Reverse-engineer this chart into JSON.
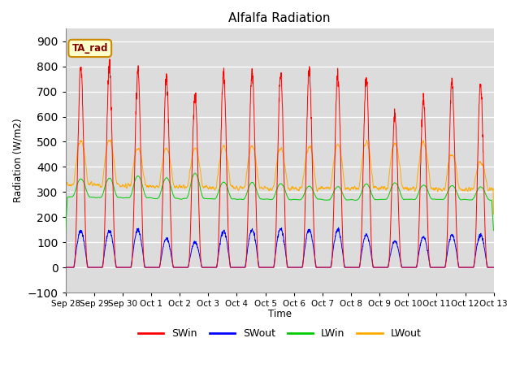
{
  "title": "Alfalfa Radiation",
  "ylabel": "Radiation (W/m2)",
  "xlabel": "Time",
  "ylim": [
    -100,
    950
  ],
  "bg_color": "#dcdcdc",
  "fig_color": "#ffffff",
  "annotation_text": "TA_rad",
  "annotation_bg": "#ffffcc",
  "annotation_border": "#cc8800",
  "tick_labels": [
    "Sep 28",
    "Sep 29",
    "Sep 30",
    "Oct 1",
    "Oct 2",
    "Oct 3",
    "Oct 4",
    "Oct 5",
    "Oct 6",
    "Oct 7",
    "Oct 8",
    "Oct 9",
    "Oct 10",
    "Oct 11",
    "Oct 12",
    "Oct 13"
  ],
  "legend_labels": [
    "SWin",
    "SWout",
    "LWin",
    "LWout"
  ],
  "legend_colors": [
    "#ff0000",
    "#0000ff",
    "#00cc00",
    "#ffaa00"
  ],
  "num_days": 15,
  "hours_per_day": 24,
  "SWin_peaks": [
    800,
    805,
    790,
    755,
    685,
    775,
    785,
    780,
    785,
    770,
    760,
    605,
    670,
    735,
    725
  ],
  "SWout_peaks": [
    145,
    145,
    150,
    115,
    100,
    145,
    150,
    155,
    150,
    150,
    130,
    105,
    120,
    130,
    130
  ],
  "LWin_night": [
    280,
    278,
    277,
    275,
    273,
    272,
    271,
    270,
    270,
    269,
    270,
    272,
    271,
    270,
    269
  ],
  "LWout_night": [
    330,
    328,
    325,
    322,
    320,
    318,
    316,
    315,
    315,
    314,
    315,
    316,
    315,
    313,
    312
  ],
  "LWin_day_add": [
    75,
    80,
    90,
    85,
    105,
    70,
    70,
    65,
    55,
    55,
    65,
    68,
    60,
    58,
    52
  ],
  "LWout_day_add": [
    175,
    180,
    150,
    150,
    155,
    165,
    165,
    160,
    165,
    175,
    180,
    178,
    185,
    135,
    108
  ]
}
